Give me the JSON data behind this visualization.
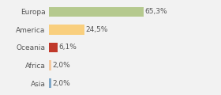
{
  "categories": [
    "Europa",
    "America",
    "Oceania",
    "Africa",
    "Asia"
  ],
  "values": [
    65.3,
    24.5,
    6.1,
    2.0,
    2.0
  ],
  "labels": [
    "65,3%",
    "24,5%",
    "6,1%",
    "2,0%",
    "2,0%"
  ],
  "bar_colors": [
    "#b5c98e",
    "#f9cf7e",
    "#c0392b",
    "#f5c9a0",
    "#7fa8c9"
  ],
  "background_color": "#f2f2f2",
  "label_fontsize": 6.5,
  "ylabel_fontsize": 6.5,
  "xlim": [
    0,
    100
  ],
  "bar_height": 0.55,
  "grid_color": "#ffffff",
  "text_color": "#555555"
}
